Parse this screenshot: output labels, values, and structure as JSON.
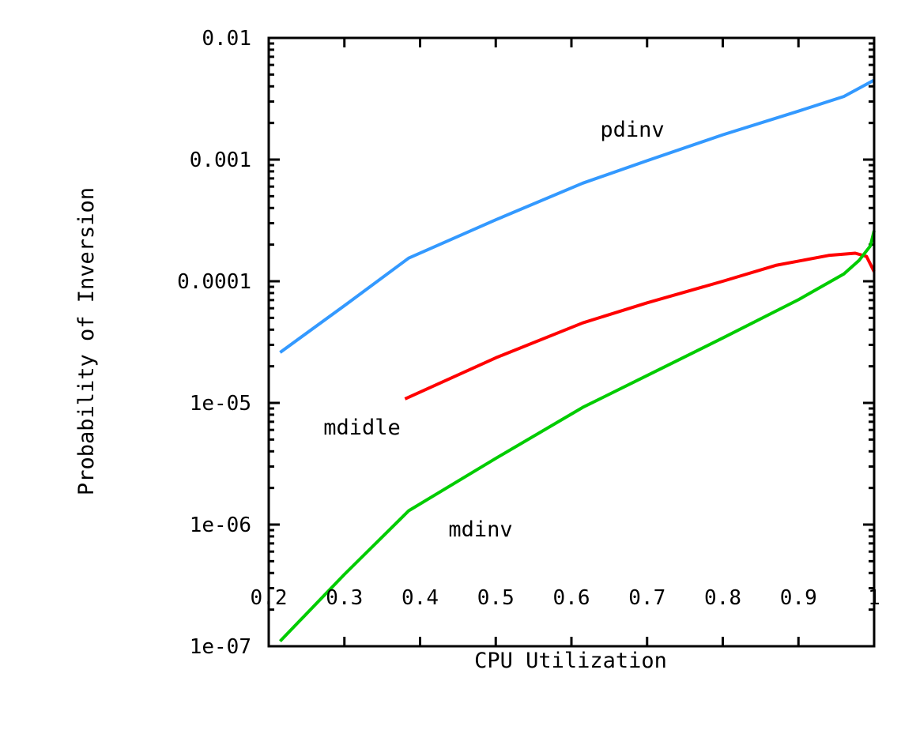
{
  "chart_data": {
    "type": "line",
    "xlabel": "CPU Utilization",
    "ylabel": "Probability of Inversion",
    "xlim": [
      0.2,
      1.0
    ],
    "ylim": [
      1e-07,
      0.01
    ],
    "yscale": "log",
    "grid": false,
    "x_ticks": [
      "0.2",
      "0.3",
      "0.4",
      "0.5",
      "0.6",
      "0.7",
      "0.8",
      "0.9",
      "1"
    ],
    "y_ticks": [
      "1e-07",
      "1e-06",
      "1e-05",
      "0.0001",
      "0.001",
      "0.01"
    ],
    "series": [
      {
        "name": "pdinv",
        "color": "#3399ff",
        "x": [
          0.215,
          0.3,
          0.385,
          0.5,
          0.615,
          0.7,
          0.8,
          0.9,
          0.96,
          1.0
        ],
        "y": [
          2.6e-05,
          6.3e-05,
          0.000155,
          0.00032,
          0.00064,
          0.00098,
          0.0016,
          0.0025,
          0.0033,
          0.0045
        ]
      },
      {
        "name": "mdidle",
        "color": "#ff0000",
        "x": [
          0.38,
          0.5,
          0.615,
          0.7,
          0.8,
          0.87,
          0.94,
          0.975,
          0.99,
          1.0
        ],
        "y": [
          1.08e-05,
          2.35e-05,
          4.55e-05,
          6.65e-05,
          0.0001,
          0.000135,
          0.000163,
          0.00017,
          0.00016,
          0.00012
        ]
      },
      {
        "name": "mdinv",
        "color": "#00cc00",
        "x": [
          0.215,
          0.3,
          0.385,
          0.5,
          0.615,
          0.7,
          0.8,
          0.9,
          0.96,
          0.98,
          0.995,
          1.0
        ],
        "y": [
          1.1e-07,
          3.9e-07,
          1.3e-06,
          3.5e-06,
          9.2e-06,
          1.68e-05,
          3.42e-05,
          7.05e-05,
          0.000115,
          0.000148,
          0.000195,
          0.00026
        ]
      }
    ]
  }
}
